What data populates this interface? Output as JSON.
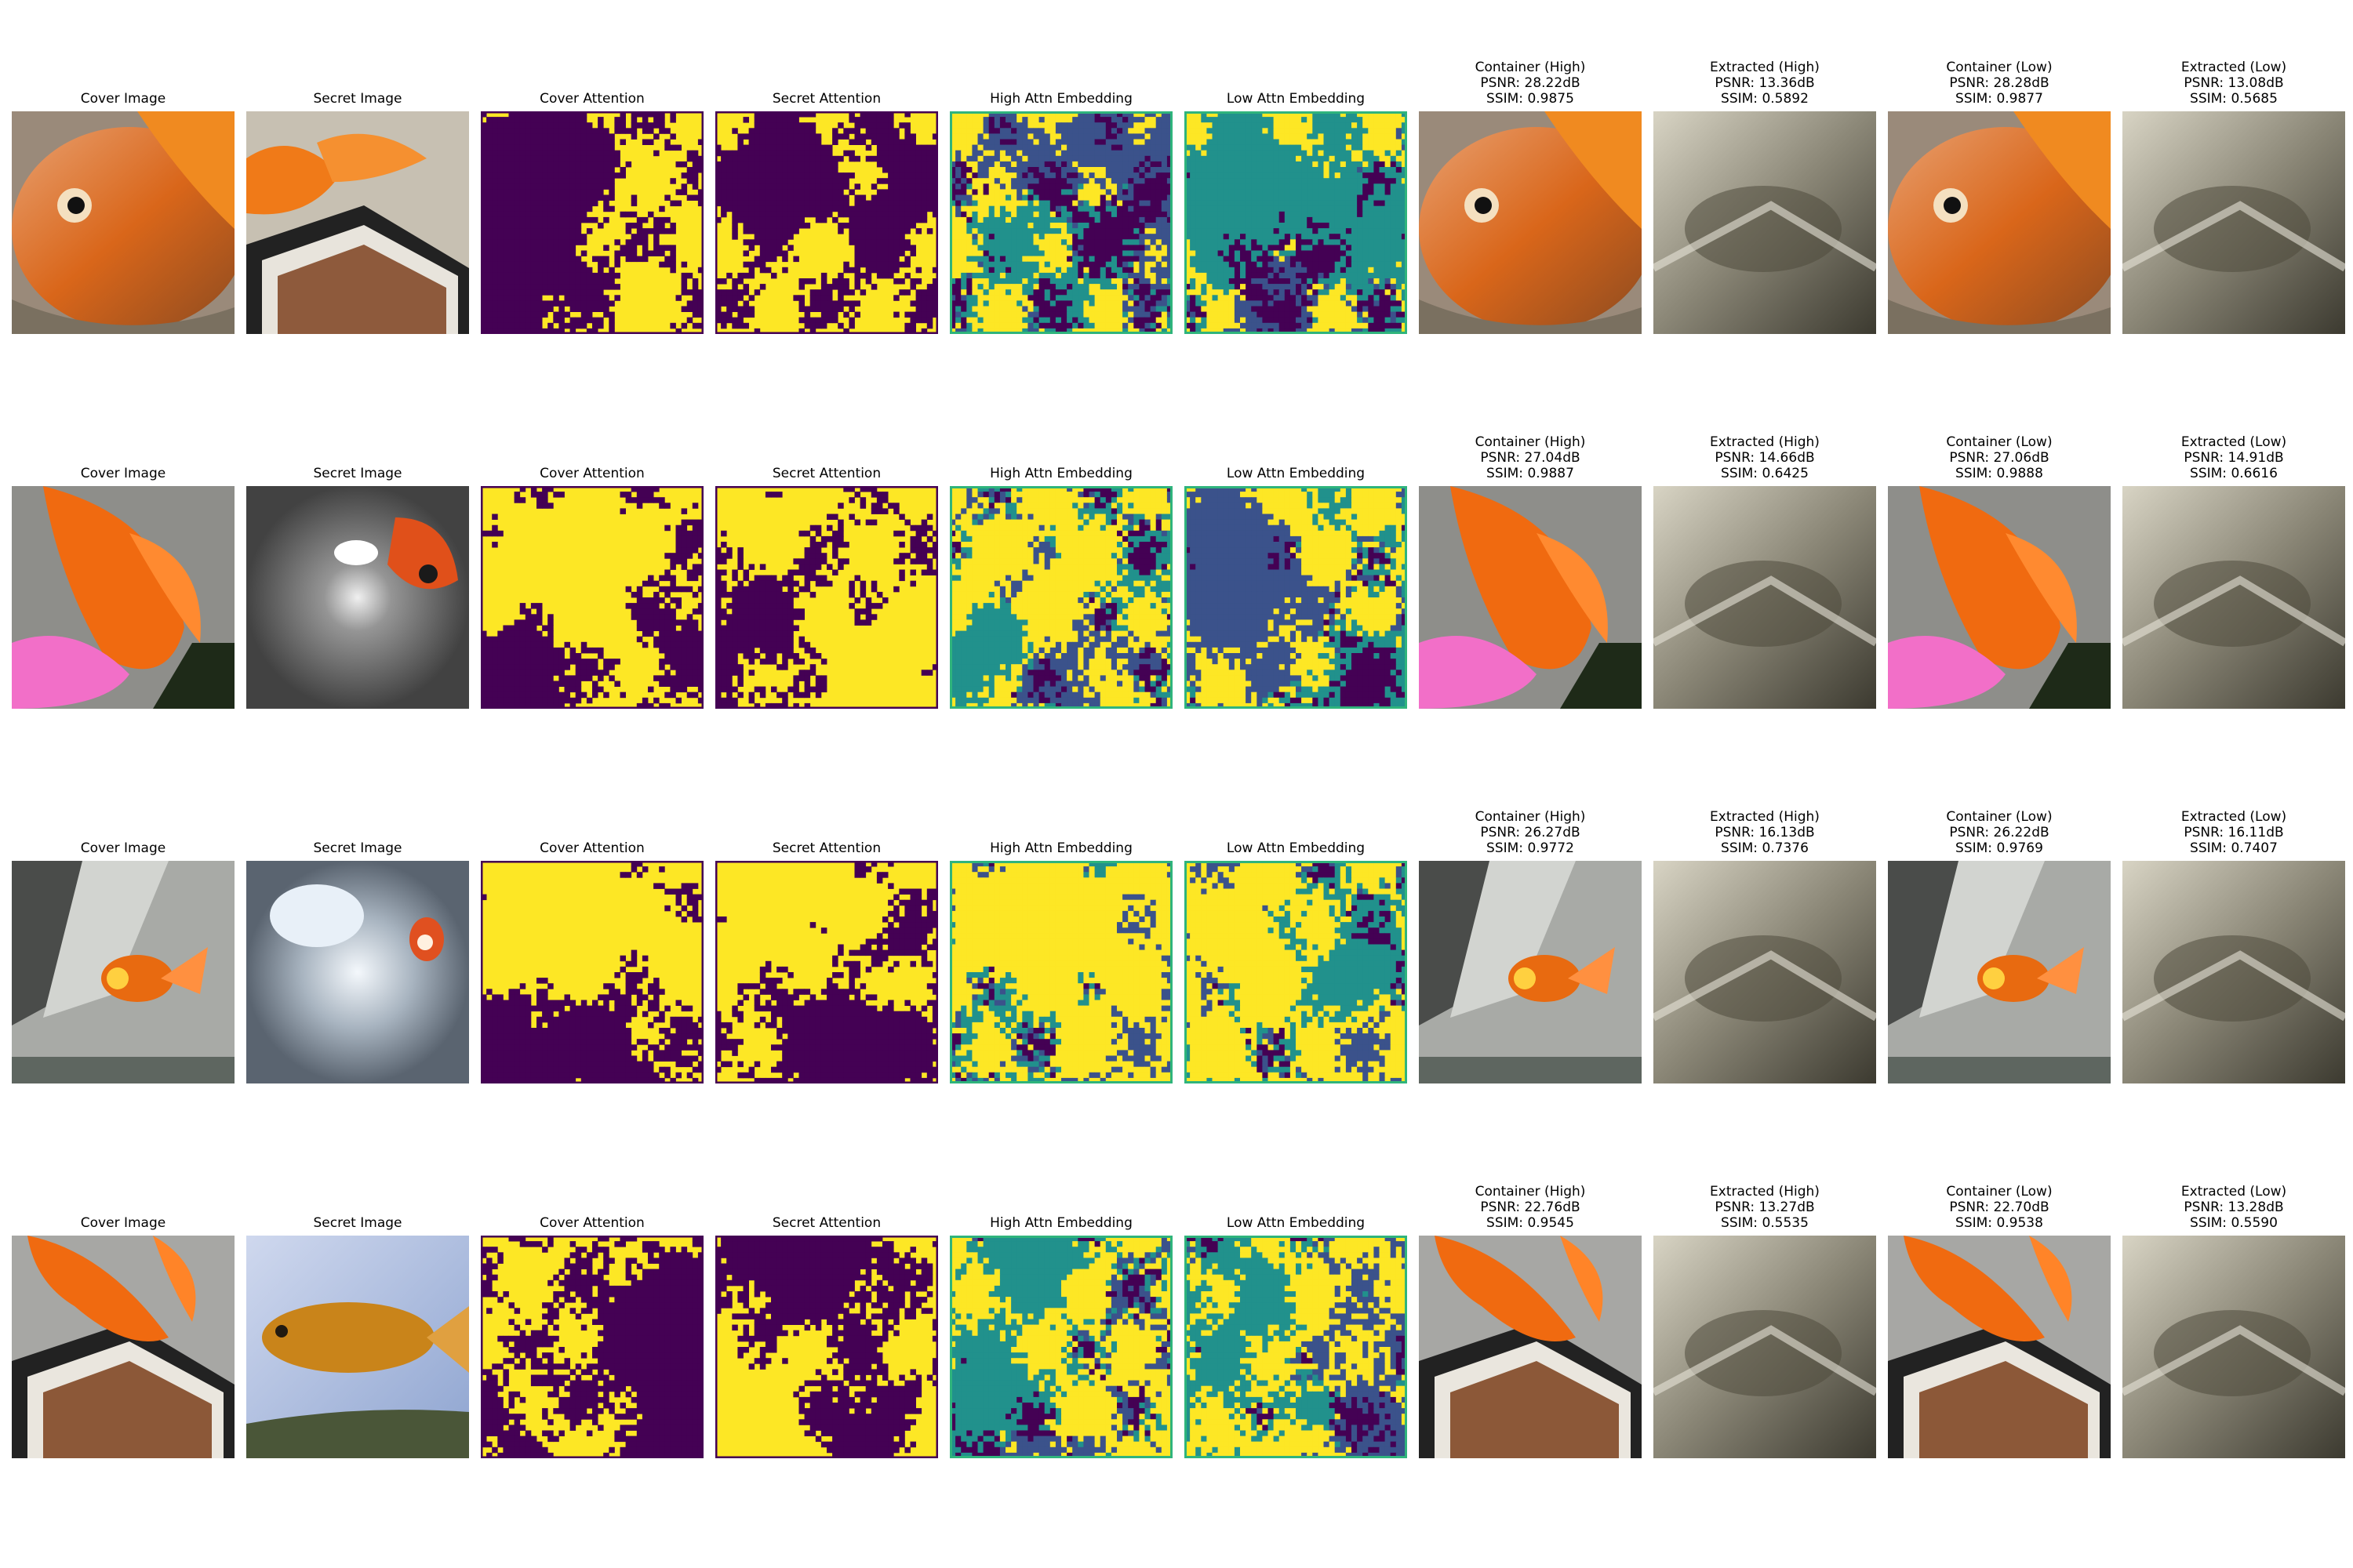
{
  "figure": {
    "rows": [
      {
        "panels": [
          {
            "lines": [
              "Cover Image"
            ],
            "kind": "photo",
            "scene": "cover-a"
          },
          {
            "lines": [
              "Secret Image"
            ],
            "kind": "photo",
            "scene": "secret-a"
          },
          {
            "lines": [
              "Cover Attention"
            ],
            "kind": "binary",
            "seed": 11
          },
          {
            "lines": [
              "Secret Attention"
            ],
            "kind": "binary",
            "seed": 12
          },
          {
            "lines": [
              "High Attn Embedding"
            ],
            "kind": "embed",
            "seed": 13
          },
          {
            "lines": [
              "Low Attn Embedding"
            ],
            "kind": "embed",
            "seed": 14
          },
          {
            "lines": [
              "Container (High)",
              "PSNR: 28.22dB",
              "SSIM: 0.9875"
            ],
            "kind": "photo",
            "scene": "cover-a"
          },
          {
            "lines": [
              "Extracted (High)",
              "PSNR: 13.36dB",
              "SSIM: 0.5892"
            ],
            "kind": "photo",
            "scene": "extract"
          },
          {
            "lines": [
              "Container (Low)",
              "PSNR: 28.28dB",
              "SSIM: 0.9877"
            ],
            "kind": "photo",
            "scene": "cover-a"
          },
          {
            "lines": [
              "Extracted (Low)",
              "PSNR: 13.08dB",
              "SSIM: 0.5685"
            ],
            "kind": "photo",
            "scene": "extract"
          }
        ]
      },
      {
        "panels": [
          {
            "lines": [
              "Cover Image"
            ],
            "kind": "photo",
            "scene": "cover-b"
          },
          {
            "lines": [
              "Secret Image"
            ],
            "kind": "photo",
            "scene": "secret-b"
          },
          {
            "lines": [
              "Cover Attention"
            ],
            "kind": "binary",
            "seed": 21
          },
          {
            "lines": [
              "Secret Attention"
            ],
            "kind": "binary",
            "seed": 22
          },
          {
            "lines": [
              "High Attn Embedding"
            ],
            "kind": "embed",
            "seed": 23
          },
          {
            "lines": [
              "Low Attn Embedding"
            ],
            "kind": "embed",
            "seed": 24
          },
          {
            "lines": [
              "Container (High)",
              "PSNR: 27.04dB",
              "SSIM: 0.9887"
            ],
            "kind": "photo",
            "scene": "cover-b"
          },
          {
            "lines": [
              "Extracted (High)",
              "PSNR: 14.66dB",
              "SSIM: 0.6425"
            ],
            "kind": "photo",
            "scene": "extract"
          },
          {
            "lines": [
              "Container (Low)",
              "PSNR: 27.06dB",
              "SSIM: 0.9888"
            ],
            "kind": "photo",
            "scene": "cover-b"
          },
          {
            "lines": [
              "Extracted (Low)",
              "PSNR: 14.91dB",
              "SSIM: 0.6616"
            ],
            "kind": "photo",
            "scene": "extract"
          }
        ]
      },
      {
        "panels": [
          {
            "lines": [
              "Cover Image"
            ],
            "kind": "photo",
            "scene": "cover-c"
          },
          {
            "lines": [
              "Secret Image"
            ],
            "kind": "photo",
            "scene": "secret-c"
          },
          {
            "lines": [
              "Cover Attention"
            ],
            "kind": "binary",
            "seed": 31
          },
          {
            "lines": [
              "Secret Attention"
            ],
            "kind": "binary",
            "seed": 32
          },
          {
            "lines": [
              "High Attn Embedding"
            ],
            "kind": "embed",
            "seed": 33
          },
          {
            "lines": [
              "Low Attn Embedding"
            ],
            "kind": "embed",
            "seed": 34
          },
          {
            "lines": [
              "Container (High)",
              "PSNR: 26.27dB",
              "SSIM: 0.9772"
            ],
            "kind": "photo",
            "scene": "cover-c"
          },
          {
            "lines": [
              "Extracted (High)",
              "PSNR: 16.13dB",
              "SSIM: 0.7376"
            ],
            "kind": "photo",
            "scene": "extract"
          },
          {
            "lines": [
              "Container (Low)",
              "PSNR: 26.22dB",
              "SSIM: 0.9769"
            ],
            "kind": "photo",
            "scene": "cover-c"
          },
          {
            "lines": [
              "Extracted (Low)",
              "PSNR: 16.11dB",
              "SSIM: 0.7407"
            ],
            "kind": "photo",
            "scene": "extract"
          }
        ]
      },
      {
        "panels": [
          {
            "lines": [
              "Cover Image"
            ],
            "kind": "photo",
            "scene": "cover-d"
          },
          {
            "lines": [
              "Secret Image"
            ],
            "kind": "photo",
            "scene": "secret-d"
          },
          {
            "lines": [
              "Cover Attention"
            ],
            "kind": "binary",
            "seed": 41
          },
          {
            "lines": [
              "Secret Attention"
            ],
            "kind": "binary",
            "seed": 42
          },
          {
            "lines": [
              "High Attn Embedding"
            ],
            "kind": "embed",
            "seed": 43
          },
          {
            "lines": [
              "Low Attn Embedding"
            ],
            "kind": "embed",
            "seed": 44
          },
          {
            "lines": [
              "Container (High)",
              "PSNR: 22.76dB",
              "SSIM: 0.9545"
            ],
            "kind": "photo",
            "scene": "cover-d"
          },
          {
            "lines": [
              "Extracted (High)",
              "PSNR: 13.27dB",
              "SSIM: 0.5535"
            ],
            "kind": "photo",
            "scene": "extract"
          },
          {
            "lines": [
              "Container (Low)",
              "PSNR: 22.70dB",
              "SSIM: 0.9538"
            ],
            "kind": "photo",
            "scene": "cover-d"
          },
          {
            "lines": [
              "Extracted (Low)",
              "PSNR: 13.28dB",
              "SSIM: 0.5590"
            ],
            "kind": "photo",
            "scene": "extract"
          }
        ]
      }
    ],
    "colors": {
      "viridis_purple": "#440154",
      "viridis_blue": "#3b528b",
      "viridis_teal": "#21918c",
      "viridis_green": "#2fb47c",
      "viridis_yellow": "#fde725"
    }
  }
}
